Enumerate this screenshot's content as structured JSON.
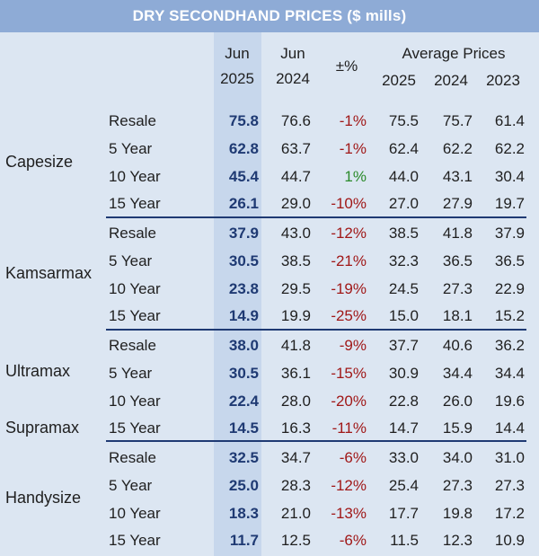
{
  "title": "DRY SECONDHAND PRICES ($ mills)",
  "headers": {
    "col_cur_line1": "Jun",
    "col_cur_line2": "2025",
    "col_prev_line1": "Jun",
    "col_prev_line2": "2024",
    "col_chg": "±%",
    "avg_title": "Average Prices",
    "avg_2025": "2025",
    "avg_2024": "2024",
    "avg_2023": "2023"
  },
  "colors": {
    "negative": "#a01818",
    "positive": "#2a8a2a",
    "title_bg": "#8eabd6",
    "body_bg": "#dce6f2"
  },
  "groups": [
    {
      "category": "Capesize",
      "rows": [
        {
          "label": "Resale",
          "jun2025": "75.8",
          "jun2024": "76.6",
          "chg": "-1%",
          "sign": "neg",
          "avg2025": "75.5",
          "avg2024": "75.7",
          "avg2023": "61.4"
        },
        {
          "label": "5 Year",
          "jun2025": "62.8",
          "jun2024": "63.7",
          "chg": "-1%",
          "sign": "neg",
          "avg2025": "62.4",
          "avg2024": "62.2",
          "avg2023": "62.2"
        },
        {
          "label": "10 Year",
          "jun2025": "45.4",
          "jun2024": "44.7",
          "chg": "1%",
          "sign": "pos",
          "avg2025": "44.0",
          "avg2024": "43.1",
          "avg2023": "30.4"
        },
        {
          "label": "15 Year",
          "jun2025": "26.1",
          "jun2024": "29.0",
          "chg": "-10%",
          "sign": "neg",
          "avg2025": "27.0",
          "avg2024": "27.9",
          "avg2023": "19.7"
        }
      ]
    },
    {
      "category": "Kamsarmax",
      "rows": [
        {
          "label": "Resale",
          "jun2025": "37.9",
          "jun2024": "43.0",
          "chg": "-12%",
          "sign": "neg",
          "avg2025": "38.5",
          "avg2024": "41.8",
          "avg2023": "37.9"
        },
        {
          "label": "5 Year",
          "jun2025": "30.5",
          "jun2024": "38.5",
          "chg": "-21%",
          "sign": "neg",
          "avg2025": "32.3",
          "avg2024": "36.5",
          "avg2023": "36.5"
        },
        {
          "label": "10 Year",
          "jun2025": "23.8",
          "jun2024": "29.5",
          "chg": "-19%",
          "sign": "neg",
          "avg2025": "24.5",
          "avg2024": "27.3",
          "avg2023": "22.9"
        },
        {
          "label": "15 Year",
          "jun2025": "14.9",
          "jun2024": "19.9",
          "chg": "-25%",
          "sign": "neg",
          "avg2025": "15.0",
          "avg2024": "18.1",
          "avg2023": "15.2"
        }
      ]
    },
    {
      "category": "Ultramax",
      "category2": "Supramax",
      "rows": [
        {
          "label": "Resale",
          "jun2025": "38.0",
          "jun2024": "41.8",
          "chg": "-9%",
          "sign": "neg",
          "avg2025": "37.7",
          "avg2024": "40.6",
          "avg2023": "36.2"
        },
        {
          "label": "5 Year",
          "jun2025": "30.5",
          "jun2024": "36.1",
          "chg": "-15%",
          "sign": "neg",
          "avg2025": "30.9",
          "avg2024": "34.4",
          "avg2023": "34.4"
        },
        {
          "label": "10 Year",
          "jun2025": "22.4",
          "jun2024": "28.0",
          "chg": "-20%",
          "sign": "neg",
          "avg2025": "22.8",
          "avg2024": "26.0",
          "avg2023": "19.6"
        },
        {
          "label": "15 Year",
          "jun2025": "14.5",
          "jun2024": "16.3",
          "chg": "-11%",
          "sign": "neg",
          "avg2025": "14.7",
          "avg2024": "15.9",
          "avg2023": "14.4"
        }
      ]
    },
    {
      "category": "Handysize",
      "rows": [
        {
          "label": "Resale",
          "jun2025": "32.5",
          "jun2024": "34.7",
          "chg": "-6%",
          "sign": "neg",
          "avg2025": "33.0",
          "avg2024": "34.0",
          "avg2023": "31.0"
        },
        {
          "label": "5 Year",
          "jun2025": "25.0",
          "jun2024": "28.3",
          "chg": "-12%",
          "sign": "neg",
          "avg2025": "25.4",
          "avg2024": "27.3",
          "avg2023": "27.3"
        },
        {
          "label": "10 Year",
          "jun2025": "18.3",
          "jun2024": "21.0",
          "chg": "-13%",
          "sign": "neg",
          "avg2025": "17.7",
          "avg2024": "19.8",
          "avg2023": "17.2"
        },
        {
          "label": "15 Year",
          "jun2025": "11.7",
          "jun2024": "12.5",
          "chg": "-6%",
          "sign": "neg",
          "avg2025": "11.5",
          "avg2024": "12.3",
          "avg2023": "10.9"
        }
      ]
    }
  ]
}
